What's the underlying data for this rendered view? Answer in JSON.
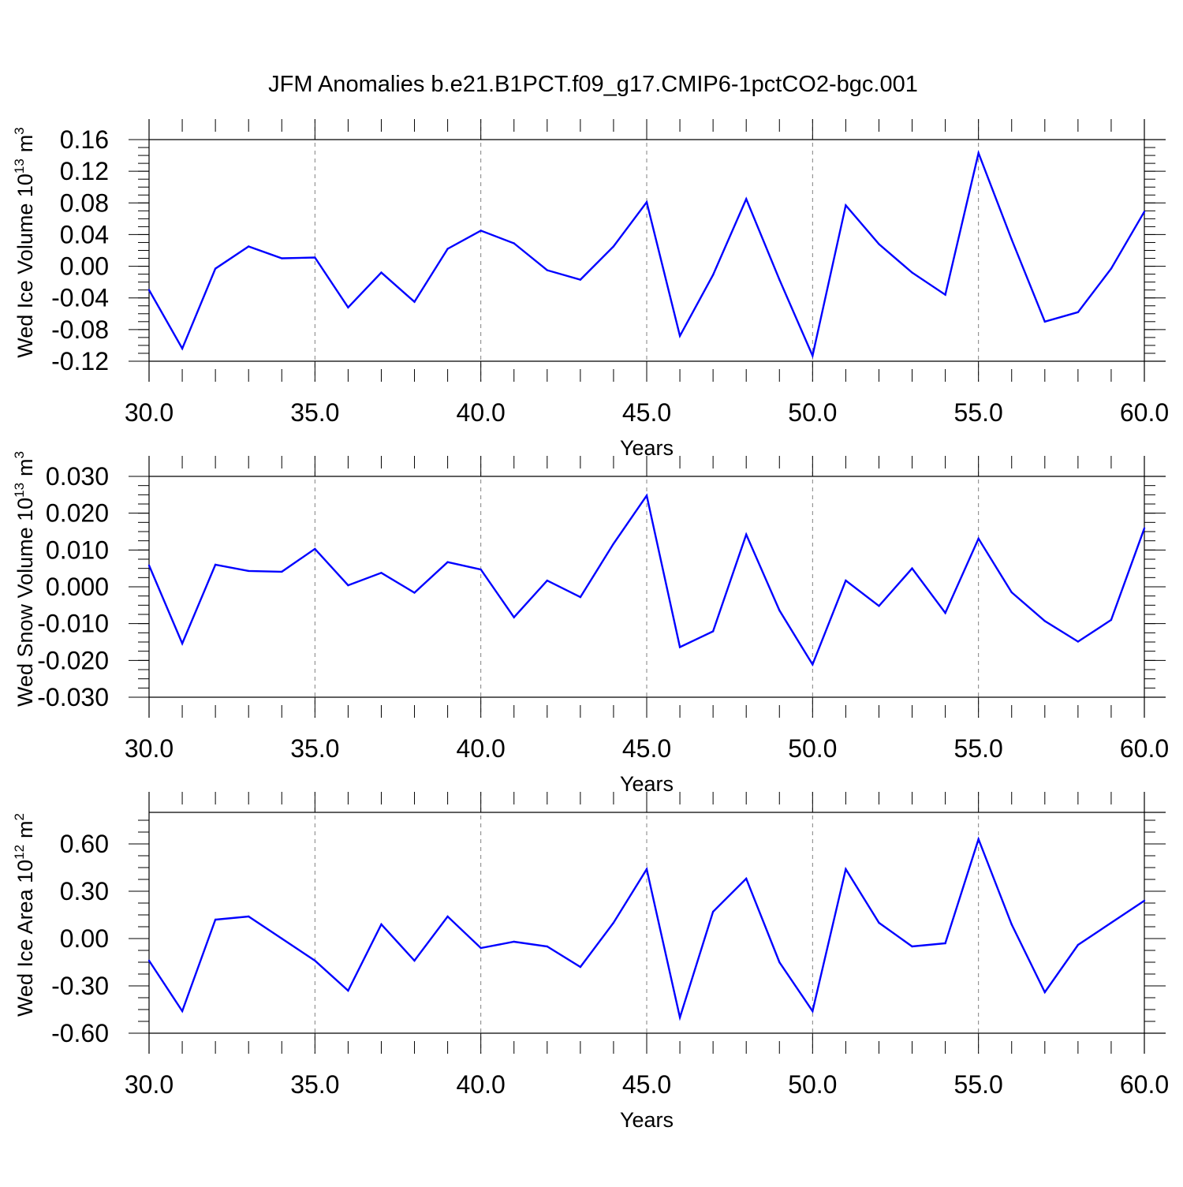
{
  "title": "JFM Anomalies b.e21.B1PCT.f09_g17.CMIP6-1pctCO2-bgc.001",
  "colors": {
    "line": "#0000ff",
    "axis": "#000000",
    "grid": "#808080"
  },
  "chart_data": [
    {
      "type": "line",
      "ylabel_main": "Wed Ice Volume 10",
      "ylabel_exp": "13",
      "ylabel_unit": "m",
      "ylabel_unit_exp": "3",
      "xlabel": "Years",
      "xlim": [
        30,
        60
      ],
      "ylim": [
        -0.12,
        0.16
      ],
      "yticks": [
        -0.12,
        -0.08,
        -0.04,
        0.0,
        0.04,
        0.08,
        0.12,
        0.16
      ],
      "ytick_labels": [
        "-0.12",
        "-0.08",
        "-0.04",
        "0.00",
        "0.04",
        "0.08",
        "0.12",
        "0.16"
      ],
      "xticks": [
        30,
        35,
        40,
        45,
        50,
        55,
        60
      ],
      "xtick_labels": [
        "30.0",
        "35.0",
        "40.0",
        "45.0",
        "50.0",
        "55.0",
        "60.0"
      ],
      "grid": "vertical-dashed",
      "x": [
        30,
        31,
        32,
        33,
        34,
        35,
        36,
        37,
        38,
        39,
        40,
        41,
        42,
        43,
        44,
        45,
        46,
        47,
        48,
        49,
        50,
        51,
        52,
        53,
        54,
        55,
        56,
        57,
        58,
        59,
        60
      ],
      "y": [
        -0.03,
        -0.104,
        -0.003,
        0.025,
        0.01,
        0.011,
        -0.052,
        -0.008,
        -0.045,
        0.022,
        0.045,
        0.029,
        -0.005,
        -0.017,
        0.025,
        0.081,
        -0.088,
        -0.011,
        0.085,
        -0.017,
        -0.113,
        0.077,
        0.028,
        -0.008,
        -0.036,
        0.143,
        0.034,
        -0.07,
        -0.058,
        -0.003,
        0.069
      ]
    },
    {
      "type": "line",
      "ylabel_main": "Wed Snow Volume 10",
      "ylabel_exp": "13",
      "ylabel_unit": "m",
      "ylabel_unit_exp": "3",
      "xlabel": "Years",
      "xlim": [
        30,
        60
      ],
      "ylim": [
        -0.03,
        0.03
      ],
      "yticks": [
        -0.03,
        -0.02,
        -0.01,
        0.0,
        0.01,
        0.02,
        0.03
      ],
      "ytick_labels": [
        "-0.030",
        "-0.020",
        "-0.010",
        "0.000",
        "0.010",
        "0.020",
        "0.030"
      ],
      "xticks": [
        30,
        35,
        40,
        45,
        50,
        55,
        60
      ],
      "xtick_labels": [
        "30.0",
        "35.0",
        "40.0",
        "45.0",
        "50.0",
        "55.0",
        "60.0"
      ],
      "grid": "vertical-dashed",
      "x": [
        30,
        31,
        32,
        33,
        34,
        35,
        36,
        37,
        38,
        39,
        40,
        41,
        42,
        43,
        44,
        45,
        46,
        47,
        48,
        49,
        50,
        51,
        52,
        53,
        54,
        55,
        56,
        57,
        58,
        59,
        60
      ],
      "y": [
        0.0058,
        -0.0154,
        0.006,
        0.0043,
        0.0041,
        0.0103,
        0.0004,
        0.0038,
        -0.0016,
        0.0067,
        0.0047,
        -0.0083,
        0.0017,
        -0.0028,
        0.0117,
        0.0248,
        -0.0164,
        -0.0121,
        0.0142,
        -0.0064,
        -0.0211,
        0.0017,
        -0.0052,
        0.005,
        -0.0071,
        0.0131,
        -0.0015,
        -0.0093,
        -0.0149,
        -0.009,
        0.0159
      ]
    },
    {
      "type": "line",
      "ylabel_main": "Wed Ice Area 10",
      "ylabel_exp": "12",
      "ylabel_unit": "m",
      "ylabel_unit_exp": "2",
      "xlabel": "Years",
      "xlim": [
        30,
        60
      ],
      "ylim": [
        -0.6,
        0.8
      ],
      "yticks": [
        -0.6,
        -0.3,
        0.0,
        0.3,
        0.6
      ],
      "ytick_labels": [
        "-0.60",
        "-0.30",
        "0.00",
        "0.30",
        "0.60"
      ],
      "xticks": [
        30,
        35,
        40,
        45,
        50,
        55,
        60
      ],
      "xtick_labels": [
        "30.0",
        "35.0",
        "40.0",
        "45.0",
        "50.0",
        "55.0",
        "60.0"
      ],
      "grid": "vertical-dashed",
      "x": [
        30,
        31,
        32,
        33,
        34,
        35,
        36,
        37,
        38,
        39,
        40,
        41,
        42,
        43,
        44,
        45,
        46,
        47,
        48,
        49,
        50,
        51,
        52,
        53,
        54,
        55,
        56,
        57,
        58,
        59,
        60
      ],
      "y": [
        -0.14,
        -0.46,
        0.12,
        0.14,
        0.0,
        -0.14,
        -0.33,
        0.09,
        -0.14,
        0.14,
        -0.06,
        -0.02,
        -0.05,
        -0.18,
        0.1,
        0.44,
        -0.5,
        0.17,
        0.38,
        -0.15,
        -0.46,
        0.44,
        0.1,
        -0.05,
        -0.03,
        0.63,
        0.09,
        -0.34,
        -0.04,
        0.1,
        0.24
      ]
    }
  ]
}
